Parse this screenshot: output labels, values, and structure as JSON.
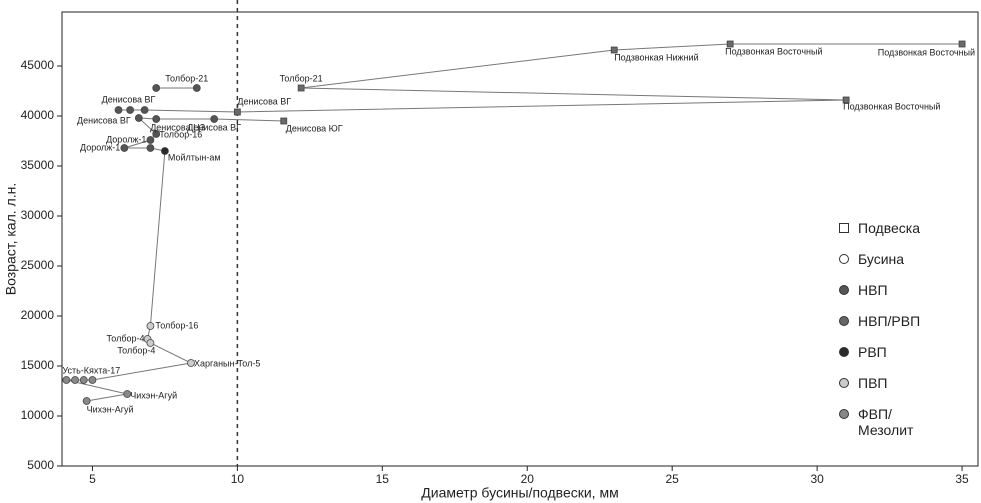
{
  "chart_data": {
    "type": "scatter",
    "x_label": "Диаметр бусины/подвески, мм",
    "y_label": "Возраст, кал. л.н.",
    "xlim": [
      3.95,
      35.55
    ],
    "ylim": [
      5000,
      50400
    ],
    "xticks": [
      5,
      10,
      15,
      20,
      25,
      30,
      35
    ],
    "yticks": [
      5000,
      10000,
      15000,
      20000,
      25000,
      30000,
      35000,
      40000,
      45000
    ],
    "vline": 10,
    "line_color": "#777777",
    "legend_position": "right",
    "legend": [
      {
        "name": "Подвеска",
        "marker": "square",
        "color": "#ffffff",
        "marker_fill": "#6a6a6a"
      },
      {
        "name": "Бусина",
        "marker": "circle",
        "color": "#ffffff"
      },
      {
        "name": "НВП",
        "marker": "circle",
        "color": "#555555"
      },
      {
        "name": "НВП/РВП",
        "marker": "circle",
        "color": "#666666"
      },
      {
        "name": "РВП",
        "marker": "circle",
        "color": "#2a2a2a"
      },
      {
        "name": "ПВП",
        "marker": "circle",
        "color": "#cccccc"
      },
      {
        "name": "ФВП/\nМезолит",
        "marker": "circle",
        "color": "#888888"
      }
    ],
    "x": [
      35,
      27,
      23,
      12.2,
      31,
      10,
      6.8,
      6.3,
      5.9,
      null,
      11.6,
      9.2,
      7.2,
      6.6,
      7.2,
      7.0,
      6.1,
      7.0,
      7.5,
      7.0,
      6.9,
      7.0,
      8.4,
      5.0,
      4.7,
      4.4,
      4.1,
      6.2,
      4.8,
      null,
      7.2,
      8.6
    ],
    "values": [
      47200,
      47200,
      46600,
      42800,
      41600,
      40400,
      40600,
      40600,
      40600,
      null,
      39500,
      39700,
      39700,
      39800,
      38200,
      37600,
      36800,
      36800,
      36500,
      19000,
      17700,
      17300,
      15300,
      13600,
      13600,
      13600,
      13600,
      12200,
      11500,
      null,
      42800,
      42800
    ],
    "point_labels": [
      "Подзвонкая Восточный",
      "Подзвонкая Восточный",
      "Подзвонкая Нижний",
      "Толбор-21",
      "Подзвонкая Восточный",
      "Денисова ВГ",
      null,
      null,
      "Денисова ВГ",
      null,
      "Денисова ЮГ",
      "Денисова ВГ",
      "Денисова ЦЗ",
      "Денисова ВГ",
      "Толбор-16",
      "Доролж-1",
      "Доролж-1",
      null,
      "Мойлтын-ам",
      "Толбор-16",
      "Толбор-4",
      "Толбор-4",
      "Харганын-Тол-5",
      null,
      null,
      null,
      "Усть-Кяхта-17",
      "Чихэн-Агуй",
      "Чихэн-Агуй",
      null,
      null,
      "Толбор-21"
    ],
    "kinds": [
      "Подвеска",
      "Подвеска",
      "Подвеска",
      "Подвеска",
      "Подвеска",
      "Подвеска",
      "НВП",
      "НВП",
      "НВП",
      null,
      "Подвеска",
      "НВП",
      "НВП",
      "НВП",
      "НВП",
      "НВП",
      "НВП",
      "НВП",
      "РВП",
      "ПВП",
      "ПВП",
      "ПВП",
      "ПВП",
      "ФВП/\nМезолит",
      "ФВП/\nМезолит",
      "ФВП/\nМезолит",
      "ФВП/\nМезолит",
      "ФВП/\nМезолит",
      "ФВП/\nМезолит",
      null,
      "НВП",
      "НВП"
    ]
  }
}
